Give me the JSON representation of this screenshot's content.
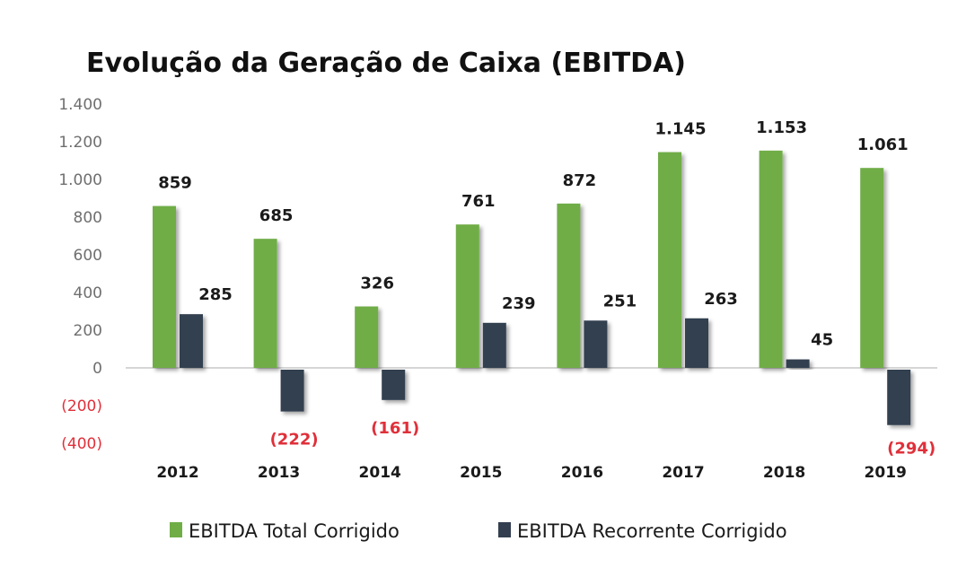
{
  "chart_data": {
    "type": "bar",
    "title": "Evolução da Geração de Caixa (EBITDA)",
    "xlabel": "",
    "ylabel": "",
    "ylim": [
      -400,
      1400
    ],
    "yticks": [
      1400,
      1200,
      1000,
      800,
      600,
      400,
      200,
      0,
      -200,
      -400
    ],
    "ytick_labels": [
      "1.400",
      "1.200",
      "1.000",
      "800",
      "600",
      "400",
      "200",
      "0",
      "(200)",
      "(400)"
    ],
    "grid": false,
    "legend_position": "bottom",
    "categories": [
      "2012",
      "2013",
      "2014",
      "2015",
      "2016",
      "2017",
      "2018",
      "2019"
    ],
    "series": [
      {
        "name": "EBITDA Total Corrigido",
        "color": "#70ad47",
        "values": [
          859,
          685,
          326,
          761,
          872,
          1145,
          1153,
          1061
        ],
        "labels": [
          "859",
          "685",
          "326",
          "761",
          "872",
          "1.145",
          "1.153",
          "1.061"
        ]
      },
      {
        "name": "EBITDA Recorrente Corrigido",
        "color": "#333f50",
        "values": [
          285,
          -222,
          -161,
          239,
          251,
          263,
          45,
          -294
        ],
        "labels": [
          "285",
          "(222)",
          "(161)",
          "239",
          "251",
          "263",
          "45",
          "(294)"
        ]
      }
    ],
    "negative_label_color": "#e0303a",
    "axis_color": "#c8c8c8"
  }
}
